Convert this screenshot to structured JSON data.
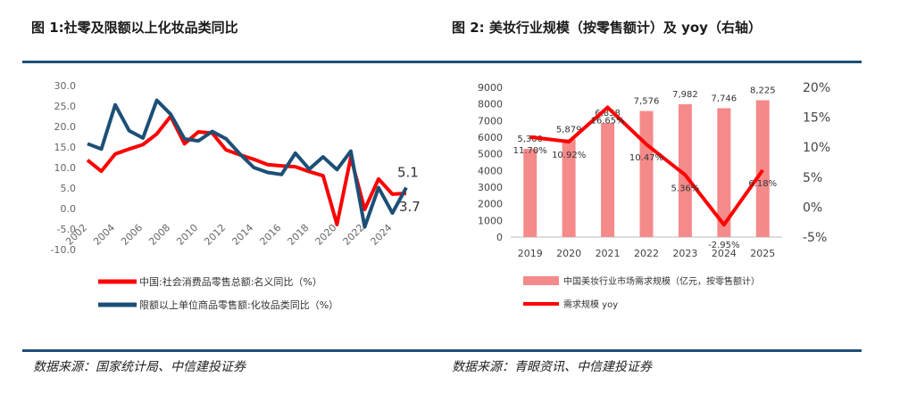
{
  "figure1": {
    "title": "图 1:社零及限额以上化妆品类同比",
    "source": "数据来源：国家统计局、中信建投证券"
  },
  "figure2": {
    "title": "图 2:  美妆行业规模（按零售额计）及 yoy（右轴）",
    "source": "数据来源：青眼资讯、中信建投证券"
  },
  "colors": {
    "red": "#ff0000",
    "blue": "#1d4f76",
    "pink": "#f58a8a",
    "rule": "#1f4e79"
  },
  "chart_data": [
    {
      "type": "line",
      "x": [
        2002,
        2003,
        2004,
        2005,
        2006,
        2007,
        2008,
        2009,
        2010,
        2011,
        2012,
        2013,
        2014,
        2015,
        2016,
        2017,
        2018,
        2019,
        2020,
        2021,
        2022,
        2023,
        2024,
        2025
      ],
      "xticks": [
        "2002",
        "2004",
        "2006",
        "2008",
        "2010",
        "2012",
        "2014",
        "2016",
        "2018",
        "2020",
        "2022",
        "2024"
      ],
      "yticks": [
        "30.0",
        "25.0",
        "20.0",
        "15.0",
        "10.0",
        "5.0",
        "0.0",
        "-5.0",
        "-10.0"
      ],
      "ylim": [
        -10,
        30
      ],
      "series": [
        {
          "name": "中国:社会消费品零售总额:名义同比（%）",
          "color": "#ff0000",
          "values": [
            11.8,
            9.1,
            13.3,
            14.5,
            15.6,
            18.2,
            22.5,
            15.8,
            18.7,
            18.4,
            14.3,
            13.1,
            12.0,
            10.7,
            10.4,
            10.2,
            9.0,
            8.0,
            -3.9,
            12.5,
            -0.2,
            7.2,
            3.5,
            3.7
          ]
        },
        {
          "name": "限额以上单位商品零售额:化妆品类同比（%）",
          "color": "#1d4f76",
          "values": [
            15.8,
            14.5,
            25.3,
            19.0,
            17.2,
            26.4,
            23.0,
            17.0,
            16.5,
            18.8,
            17.0,
            13.3,
            10.0,
            8.8,
            8.3,
            13.5,
            9.6,
            12.6,
            9.5,
            14.0,
            -4.5,
            5.1,
            -1.1,
            5.1
          ]
        }
      ],
      "annotations": [
        {
          "text": "5.1",
          "series": 1
        },
        {
          "text": "3.7",
          "series": 0
        }
      ],
      "legend": "bottom"
    },
    {
      "type": "bar",
      "categories": [
        "2019",
        "2020",
        "2021",
        "2022",
        "2023",
        "2024",
        "2025"
      ],
      "left_yticks": [
        "9000",
        "8000",
        "7000",
        "6000",
        "5000",
        "4000",
        "3000",
        "2000",
        "1000",
        "0"
      ],
      "right_yticks": [
        "20%",
        "15%",
        "10%",
        "5%",
        "0%",
        "-5%"
      ],
      "ylim_left": [
        0,
        9000
      ],
      "ylim_right": [
        -5,
        20
      ],
      "series": [
        {
          "name": "中国美妆行业市场需求规模（亿元，按零售额计）",
          "color": "#f58a8a",
          "type": "bar",
          "values": [
            5300,
            5879,
            6858,
            7576,
            7982,
            7746,
            8225
          ],
          "labels": [
            "5,300",
            "5,879",
            "6,858",
            "7,576",
            "7,982",
            "7,746",
            "8,225"
          ]
        },
        {
          "name": "需求规模 yoy",
          "color": "#ff0000",
          "type": "line",
          "values": [
            11.7,
            10.92,
            16.65,
            10.47,
            5.36,
            -2.95,
            6.18
          ],
          "labels": [
            "11.70%",
            "10.92%",
            "16.65%",
            "10.47%",
            "5.36%",
            "-2.95%",
            "6.18%"
          ]
        }
      ],
      "legend": "bottom"
    }
  ]
}
